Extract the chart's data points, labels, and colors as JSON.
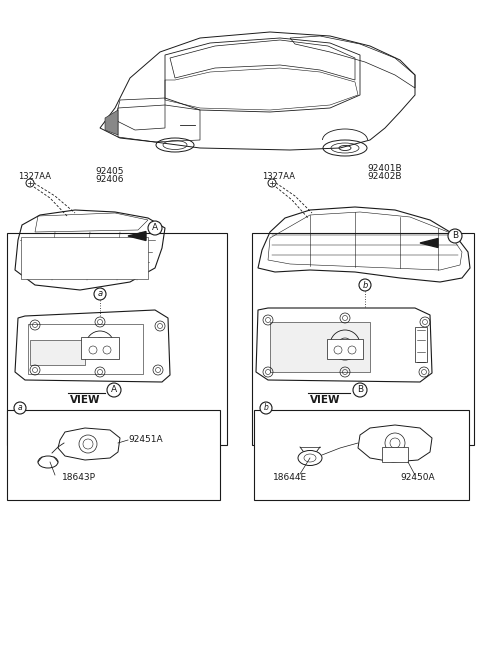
{
  "bg_color": "#ffffff",
  "line_color": "#1a1a1a",
  "fig_width": 4.8,
  "fig_height": 6.52,
  "labels": {
    "left_part1": "92405",
    "left_part2": "92406",
    "left_callout": "1327AA",
    "left_view": "VIEW",
    "left_view_circle": "A",
    "left_circle_A": "A",
    "left_circle_a": "a",
    "left_part_a": "92451A",
    "left_part_b": "18643P",
    "right_part1": "92401B",
    "right_part2": "92402B",
    "right_callout": "1327AA",
    "right_view": "VIEW",
    "right_view_circle": "B",
    "right_circle_B": "B",
    "right_circle_b": "b",
    "right_part_a": "92450A",
    "right_part_b": "18644E"
  }
}
